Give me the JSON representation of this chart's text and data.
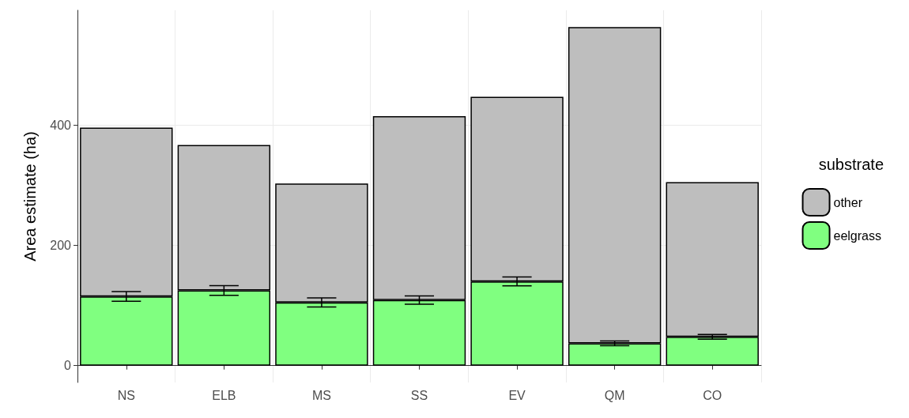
{
  "chart_data": {
    "type": "bar",
    "stacked": true,
    "ylabel": "Area estimate (ha)",
    "legend_title": "substrate",
    "legend": "right",
    "grid": true,
    "categories": [
      "NS",
      "ELB",
      "MS",
      "SS",
      "EV",
      "QM",
      "CO"
    ],
    "series": [
      {
        "name": "eelgrass",
        "color": "#80ff80",
        "values": [
          115,
          125,
          105,
          109,
          140,
          37,
          48
        ],
        "errors": [
          8,
          8,
          7.5,
          7,
          7.5,
          4,
          4
        ]
      },
      {
        "name": "other",
        "color": "#bebebe",
        "values": [
          281,
          242,
          198,
          306,
          307,
          526,
          257
        ]
      }
    ],
    "ylim": [
      -28,
      591
    ],
    "yticks": [
      0,
      200,
      400
    ]
  }
}
